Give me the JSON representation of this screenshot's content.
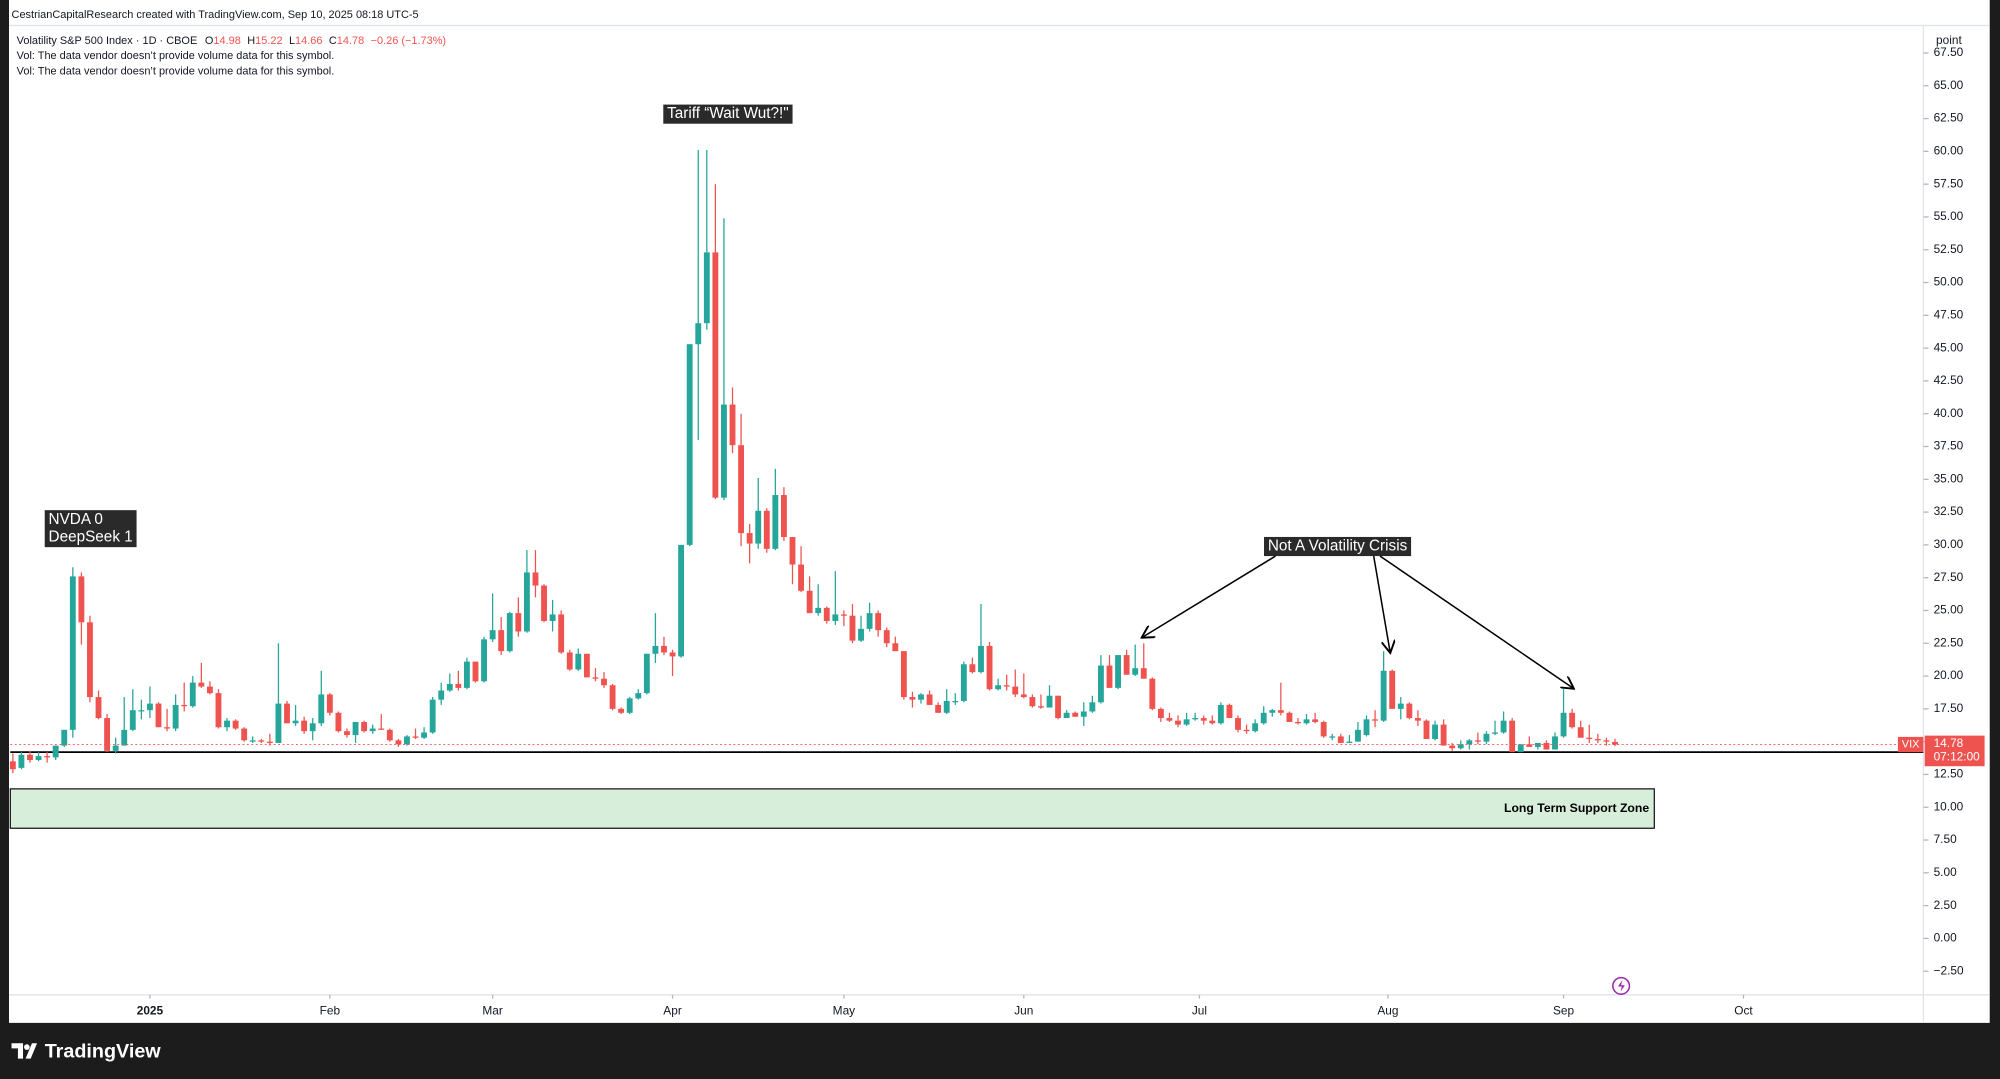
{
  "header": {
    "credit": "CestrianCapitalResearch created with TradingView.com, Sep 10, 2025 08:18 UTC-5",
    "symbol": "Volatility S&P 500 Index · 1D · CBOE",
    "o_label": "O",
    "h_label": "H",
    "l_label": "L",
    "c_label": "C",
    "change": "−0.26 (−1.73%)",
    "vol_notes": [
      "Vol: The data vendor doesn’t provide volume data for this symbol.",
      "Vol: The data vendor doesn’t provide volume data for this symbol."
    ]
  },
  "footer": {
    "brand": "TradingView"
  },
  "chart_data": {
    "type": "candlestick",
    "up_color": "#26a69a",
    "down_color": "#ef5350",
    "grid": false,
    "y_unit": "point",
    "ticker": "VIX",
    "countdown": "07:12:00",
    "support_line": 14.2,
    "support_zone": [
      8.4,
      11.4
    ],
    "support_zone_label": "Long Term Support Zone",
    "annotations": [
      {
        "lines": [
          "NVDA 0",
          "DeepSeek 1"
        ]
      },
      {
        "lines": [
          "Tariff “Wait Wut?!\""
        ]
      },
      {
        "lines": [
          "Not A Volatility Crisis"
        ]
      }
    ],
    "xlim": [
      -0.3,
      223
    ],
    "xticks": [
      {
        "value": 16,
        "label": "2025"
      },
      {
        "value": 37,
        "label": "Feb"
      },
      {
        "value": 56,
        "label": "Mar"
      },
      {
        "value": 77,
        "label": "Apr"
      },
      {
        "value": 97,
        "label": "May"
      },
      {
        "value": 118,
        "label": "Jun"
      },
      {
        "value": 138.5,
        "label": "Jul"
      },
      {
        "value": 160.5,
        "label": "Aug"
      },
      {
        "value": 181,
        "label": "Sep"
      },
      {
        "value": 202,
        "label": "Oct"
      }
    ],
    "ylim": [
      -4.3,
      69.4
    ],
    "yticks": [
      {
        "value": -2.5,
        "label": "−2.50"
      },
      {
        "value": 0,
        "label": "0.00"
      },
      {
        "value": 2.5,
        "label": "2.50"
      },
      {
        "value": 5,
        "label": "5.00"
      },
      {
        "value": 7.5,
        "label": "7.50"
      },
      {
        "value": 10,
        "label": "10.00"
      },
      {
        "value": 12.5,
        "label": "12.50"
      },
      {
        "value": 15,
        "label": "15.00"
      },
      {
        "value": 17.5,
        "label": "17.50"
      },
      {
        "value": 20,
        "label": "20.00"
      },
      {
        "value": 22.5,
        "label": "22.50"
      },
      {
        "value": 25,
        "label": "25.00"
      },
      {
        "value": 27.5,
        "label": "27.50"
      },
      {
        "value": 30,
        "label": "30.00"
      },
      {
        "value": 32.5,
        "label": "32.50"
      },
      {
        "value": 35,
        "label": "35.00"
      },
      {
        "value": 37.5,
        "label": "37.50"
      },
      {
        "value": 40,
        "label": "40.00"
      },
      {
        "value": 42.5,
        "label": "42.50"
      },
      {
        "value": 45,
        "label": "45.00"
      },
      {
        "value": 47.5,
        "label": "47.50"
      },
      {
        "value": 50,
        "label": "50.00"
      },
      {
        "value": 52.5,
        "label": "52.50"
      },
      {
        "value": 55,
        "label": "55.00"
      },
      {
        "value": 57.5,
        "label": "57.50"
      },
      {
        "value": 60,
        "label": "60.00"
      },
      {
        "value": 62.5,
        "label": "62.50"
      },
      {
        "value": 65,
        "label": "65.00"
      },
      {
        "value": 67.5,
        "label": "67.50"
      }
    ],
    "ohlc": [
      [
        13.5,
        14.1,
        12.6,
        12.9
      ],
      [
        13.0,
        14.2,
        12.9,
        14.0
      ],
      [
        14.0,
        14.3,
        13.4,
        13.6
      ],
      [
        13.6,
        14.2,
        13.5,
        13.9
      ],
      [
        13.9,
        14.2,
        13.4,
        13.8
      ],
      [
        13.8,
        14.7,
        13.6,
        14.7
      ],
      [
        14.7,
        15.9,
        14.6,
        15.9
      ],
      [
        15.9,
        28.3,
        15.3,
        27.6
      ],
      [
        27.6,
        27.9,
        22.4,
        24.1
      ],
      [
        24.1,
        24.6,
        18.0,
        18.4
      ],
      [
        18.4,
        18.9,
        16.7,
        16.8
      ],
      [
        16.8,
        17.1,
        14.2,
        14.3
      ],
      [
        14.3,
        15.3,
        14.1,
        14.7
      ],
      [
        14.7,
        18.4,
        14.7,
        15.9
      ],
      [
        15.9,
        19.0,
        15.8,
        17.4
      ],
      [
        17.4,
        18.2,
        16.7,
        17.4
      ],
      [
        17.4,
        19.2,
        16.8,
        17.9
      ],
      [
        17.9,
        18.0,
        16.1,
        16.1
      ],
      [
        16.1,
        17.5,
        15.8,
        16.0
      ],
      [
        16.0,
        18.6,
        15.8,
        17.8
      ],
      [
        17.8,
        19.5,
        17.3,
        17.7
      ],
      [
        17.7,
        20.0,
        17.6,
        19.5
      ],
      [
        19.5,
        21.0,
        19.1,
        19.2
      ],
      [
        19.2,
        19.6,
        18.6,
        18.7
      ],
      [
        18.7,
        19.0,
        16.0,
        16.1
      ],
      [
        16.1,
        16.8,
        15.8,
        16.6
      ],
      [
        16.6,
        16.7,
        15.9,
        16.0
      ],
      [
        16.0,
        16.1,
        15.0,
        15.1
      ],
      [
        15.1,
        15.4,
        14.9,
        15.1
      ],
      [
        15.1,
        15.2,
        14.9,
        15.0
      ],
      [
        15.0,
        15.6,
        14.7,
        14.9
      ],
      [
        14.9,
        22.5,
        14.9,
        17.9
      ],
      [
        17.9,
        18.1,
        16.4,
        16.4
      ],
      [
        16.4,
        17.8,
        16.2,
        16.6
      ],
      [
        16.6,
        16.9,
        15.6,
        15.8
      ],
      [
        15.8,
        16.8,
        15.1,
        16.4
      ],
      [
        16.4,
        20.4,
        16.2,
        18.6
      ],
      [
        18.6,
        18.7,
        17.0,
        17.2
      ],
      [
        17.2,
        17.3,
        15.7,
        15.8
      ],
      [
        15.8,
        16.0,
        15.3,
        15.5
      ],
      [
        15.5,
        16.5,
        14.9,
        16.5
      ],
      [
        16.5,
        16.6,
        15.7,
        15.8
      ],
      [
        15.8,
        16.3,
        15.6,
        16.0
      ],
      [
        16.0,
        17.1,
        15.9,
        15.9
      ],
      [
        15.9,
        16.0,
        15.0,
        15.1
      ],
      [
        15.1,
        15.2,
        14.6,
        14.8
      ],
      [
        14.8,
        15.5,
        14.7,
        15.4
      ],
      [
        15.4,
        16.0,
        15.2,
        15.3
      ],
      [
        15.3,
        16.1,
        15.2,
        15.7
      ],
      [
        15.7,
        18.4,
        15.6,
        18.2
      ],
      [
        18.2,
        19.5,
        17.8,
        18.9
      ],
      [
        18.9,
        20.2,
        18.8,
        19.4
      ],
      [
        19.4,
        20.4,
        18.9,
        19.1
      ],
      [
        19.1,
        21.4,
        19.0,
        21.1
      ],
      [
        21.1,
        21.1,
        19.5,
        19.6
      ],
      [
        19.6,
        23.0,
        19.5,
        22.8
      ],
      [
        22.8,
        26.3,
        22.6,
        23.5
      ],
      [
        23.5,
        24.5,
        21.6,
        21.9
      ],
      [
        21.9,
        24.9,
        21.8,
        24.8
      ],
      [
        24.8,
        26.0,
        23.0,
        23.4
      ],
      [
        23.4,
        29.6,
        23.3,
        27.9
      ],
      [
        27.9,
        29.6,
        26.0,
        26.9
      ],
      [
        26.9,
        27.0,
        24.1,
        24.2
      ],
      [
        24.2,
        25.8,
        23.4,
        24.7
      ],
      [
        24.7,
        25.0,
        21.7,
        21.8
      ],
      [
        21.8,
        22.0,
        20.4,
        20.5
      ],
      [
        20.5,
        22.1,
        20.4,
        21.7
      ],
      [
        21.7,
        21.7,
        19.9,
        19.9
      ],
      [
        19.9,
        20.6,
        19.6,
        19.8
      ],
      [
        19.8,
        20.3,
        19.1,
        19.3
      ],
      [
        19.3,
        19.4,
        17.4,
        17.5
      ],
      [
        17.5,
        17.6,
        17.1,
        17.2
      ],
      [
        17.2,
        18.4,
        17.1,
        18.3
      ],
      [
        18.3,
        19.0,
        18.2,
        18.7
      ],
      [
        18.7,
        21.7,
        18.6,
        21.7
      ],
      [
        21.7,
        24.8,
        21.0,
        22.3
      ],
      [
        22.3,
        23.0,
        21.6,
        21.8
      ],
      [
        21.8,
        22.0,
        20.0,
        21.5
      ],
      [
        21.5,
        30.0,
        21.4,
        30.0
      ],
      [
        30.0,
        45.3,
        29.9,
        45.3
      ],
      [
        45.3,
        60.1,
        38.0,
        46.9
      ],
      [
        46.9,
        60.1,
        46.4,
        52.3
      ],
      [
        52.3,
        57.5,
        33.5,
        33.6
      ],
      [
        33.6,
        54.9,
        33.4,
        40.7
      ],
      [
        40.7,
        42.0,
        37.0,
        37.6
      ],
      [
        37.6,
        40.0,
        29.9,
        30.9
      ],
      [
        30.9,
        31.6,
        28.6,
        30.1
      ],
      [
        30.1,
        35.1,
        29.7,
        32.6
      ],
      [
        32.6,
        32.8,
        29.4,
        29.7
      ],
      [
        29.7,
        35.8,
        29.6,
        33.8
      ],
      [
        33.8,
        34.4,
        30.3,
        30.6
      ],
      [
        30.6,
        30.6,
        27.0,
        28.5
      ],
      [
        28.5,
        29.9,
        26.4,
        26.5
      ],
      [
        26.5,
        27.6,
        24.8,
        24.8
      ],
      [
        24.8,
        27.0,
        24.6,
        25.2
      ],
      [
        25.2,
        25.3,
        24.0,
        24.2
      ],
      [
        24.2,
        28.0,
        23.9,
        24.7
      ],
      [
        24.7,
        25.0,
        23.8,
        24.6
      ],
      [
        24.6,
        25.5,
        22.5,
        22.7
      ],
      [
        22.7,
        24.6,
        22.6,
        23.6
      ],
      [
        23.6,
        25.6,
        23.4,
        24.8
      ],
      [
        24.8,
        25.0,
        23.0,
        23.5
      ],
      [
        23.5,
        23.7,
        22.2,
        22.5
      ],
      [
        22.5,
        23.0,
        21.9,
        21.9
      ],
      [
        21.9,
        21.9,
        18.2,
        18.4
      ],
      [
        18.4,
        18.8,
        17.6,
        18.2
      ],
      [
        18.2,
        18.7,
        17.9,
        18.6
      ],
      [
        18.6,
        18.9,
        17.8,
        17.8
      ],
      [
        17.8,
        18.0,
        17.2,
        17.2
      ],
      [
        17.2,
        19.0,
        17.1,
        18.1
      ],
      [
        18.1,
        18.7,
        17.8,
        18.1
      ],
      [
        18.1,
        21.1,
        18.0,
        20.9
      ],
      [
        20.9,
        21.4,
        20.2,
        20.3
      ],
      [
        20.3,
        25.5,
        20.2,
        22.3
      ],
      [
        22.3,
        22.6,
        18.9,
        19.0
      ],
      [
        19.0,
        19.8,
        18.9,
        19.3
      ],
      [
        19.3,
        20.1,
        18.9,
        19.2
      ],
      [
        19.2,
        20.5,
        18.4,
        18.6
      ],
      [
        18.6,
        20.2,
        18.3,
        18.4
      ],
      [
        18.4,
        18.6,
        17.6,
        17.7
      ],
      [
        17.7,
        18.6,
        17.5,
        17.6
      ],
      [
        17.6,
        19.3,
        17.6,
        18.5
      ],
      [
        18.5,
        18.5,
        16.7,
        16.8
      ],
      [
        16.8,
        17.4,
        16.8,
        17.2
      ],
      [
        17.2,
        17.3,
        16.9,
        16.9
      ],
      [
        16.9,
        18.0,
        16.2,
        17.3
      ],
      [
        17.3,
        18.5,
        17.2,
        18.0
      ],
      [
        18.0,
        21.6,
        17.9,
        20.8
      ],
      [
        20.8,
        21.6,
        19.1,
        19.1
      ],
      [
        19.1,
        21.6,
        19.0,
        21.6
      ],
      [
        21.6,
        22.0,
        20.1,
        20.1
      ],
      [
        20.1,
        22.4,
        20.0,
        20.6
      ],
      [
        20.6,
        22.5,
        19.8,
        19.8
      ],
      [
        19.8,
        19.9,
        17.4,
        17.5
      ],
      [
        17.5,
        17.6,
        16.5,
        16.8
      ],
      [
        16.8,
        17.2,
        16.5,
        16.6
      ],
      [
        16.6,
        17.0,
        16.1,
        16.3
      ],
      [
        16.3,
        17.2,
        16.2,
        16.7
      ],
      [
        16.7,
        17.2,
        16.6,
        16.8
      ],
      [
        16.8,
        17.0,
        16.3,
        16.6
      ],
      [
        16.6,
        17.0,
        16.3,
        16.4
      ],
      [
        16.4,
        18.0,
        16.3,
        17.8
      ],
      [
        17.8,
        17.9,
        16.8,
        16.8
      ],
      [
        16.8,
        17.0,
        15.7,
        15.9
      ],
      [
        15.9,
        16.3,
        15.6,
        15.8
      ],
      [
        15.8,
        16.7,
        15.7,
        16.4
      ],
      [
        16.4,
        17.7,
        16.3,
        17.2
      ],
      [
        17.2,
        17.5,
        16.9,
        17.4
      ],
      [
        17.4,
        19.5,
        17.0,
        17.2
      ],
      [
        17.2,
        17.3,
        16.5,
        16.5
      ],
      [
        16.5,
        16.8,
        16.3,
        16.4
      ],
      [
        16.4,
        17.1,
        16.3,
        16.7
      ],
      [
        16.7,
        17.2,
        16.4,
        16.5
      ],
      [
        16.5,
        16.6,
        15.3,
        15.4
      ],
      [
        15.4,
        15.6,
        15.1,
        15.4
      ],
      [
        15.4,
        15.6,
        14.9,
        14.9
      ],
      [
        14.9,
        15.5,
        14.9,
        15.0
      ],
      [
        15.0,
        16.5,
        15.0,
        15.9
      ],
      [
        15.5,
        17.0,
        15.4,
        16.7
      ],
      [
        16.7,
        17.4,
        16.1,
        16.6
      ],
      [
        16.6,
        21.9,
        16.5,
        20.4
      ],
      [
        20.4,
        20.5,
        17.5,
        17.5
      ],
      [
        17.5,
        18.4,
        16.7,
        17.9
      ],
      [
        17.9,
        18.0,
        16.7,
        16.8
      ],
      [
        16.8,
        17.4,
        16.2,
        16.6
      ],
      [
        16.6,
        16.7,
        15.2,
        15.2
      ],
      [
        15.2,
        16.6,
        15.1,
        16.3
      ],
      [
        16.3,
        16.7,
        14.7,
        14.7
      ],
      [
        14.7,
        14.9,
        14.3,
        14.5
      ],
      [
        14.5,
        15.1,
        14.4,
        14.8
      ],
      [
        14.8,
        15.2,
        14.4,
        15.1
      ],
      [
        15.1,
        15.7,
        14.8,
        15.0
      ],
      [
        15.0,
        15.8,
        14.8,
        15.6
      ],
      [
        15.6,
        16.6,
        15.5,
        15.7
      ],
      [
        15.7,
        17.3,
        15.6,
        16.6
      ],
      [
        16.6,
        16.8,
        14.2,
        14.2
      ],
      [
        14.2,
        14.8,
        14.2,
        14.8
      ],
      [
        14.8,
        15.4,
        14.6,
        14.6
      ],
      [
        14.6,
        14.9,
        14.4,
        14.9
      ],
      [
        14.9,
        15.1,
        14.4,
        14.4
      ],
      [
        14.4,
        15.7,
        14.4,
        15.4
      ],
      [
        15.4,
        19.0,
        15.3,
        17.2
      ],
      [
        17.2,
        17.5,
        16.0,
        16.1
      ],
      [
        16.1,
        16.6,
        15.3,
        15.3
      ],
      [
        15.3,
        16.3,
        14.9,
        15.2
      ],
      [
        15.2,
        15.6,
        14.9,
        15.1
      ],
      [
        15.1,
        15.3,
        14.7,
        15.0
      ],
      [
        14.98,
        15.22,
        14.66,
        14.78
      ]
    ]
  }
}
